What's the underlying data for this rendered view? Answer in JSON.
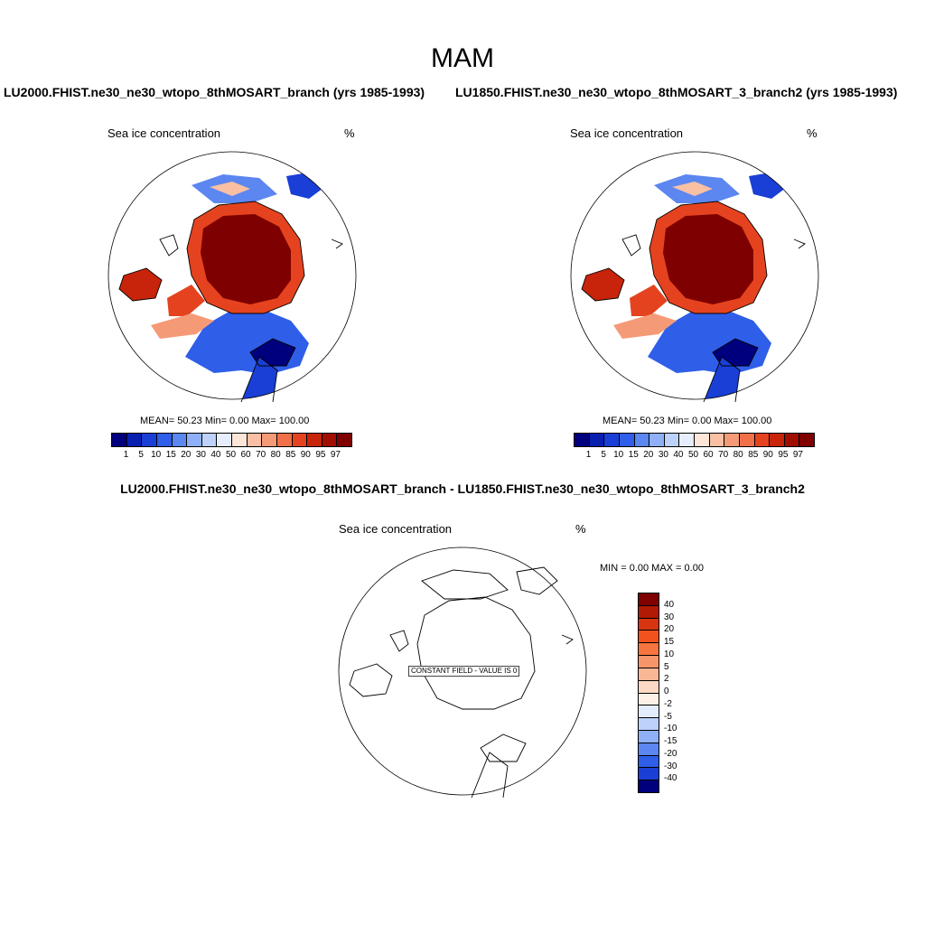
{
  "main_title": "MAM",
  "panels": [
    {
      "case_title": "LU2000.FHIST.ne30_ne30_wtopo_8thMOSART_branch (yrs 1985-1993)",
      "var_label": "Sea ice concentration",
      "units": "%",
      "stats": "MEAN=  50.23  Min=   0.00  Max= 100.00"
    },
    {
      "case_title": "LU1850.FHIST.ne30_ne30_wtopo_8thMOSART_3_branch2 (yrs 1985-1993)",
      "var_label": "Sea ice concentration",
      "units": "%",
      "stats": "MEAN=  50.23  Min=   0.00  Max= 100.00"
    }
  ],
  "diff_panel": {
    "title": "LU2000.FHIST.ne30_ne30_wtopo_8thMOSART_branch - LU1850.FHIST.ne30_ne30_wtopo_8thMOSART_3_branch2",
    "var_label": "Sea ice concentration",
    "units": "%",
    "stats": "MIN =   0.00 MAX =   0.00",
    "constant_field_label": "CONSTANT FIELD - VALUE IS 0"
  },
  "colorbar_horizontal": {
    "labels": [
      "1",
      "5",
      "10",
      "15",
      "20",
      "30",
      "40",
      "50",
      "60",
      "70",
      "80",
      "85",
      "90",
      "95",
      "97"
    ],
    "colors": [
      "#00007f",
      "#0a20b0",
      "#1a3fd6",
      "#2f5ee8",
      "#5c86f0",
      "#8fb0f7",
      "#bcd2fb",
      "#e6eefd",
      "#fde6d8",
      "#f9c0a4",
      "#f59a76",
      "#f1704a",
      "#e5431f",
      "#c8240b",
      "#a20d02",
      "#7f0000"
    ]
  },
  "colorbar_vertical": {
    "labels": [
      "40",
      "30",
      "20",
      "15",
      "10",
      "5",
      "2",
      "0",
      "-2",
      "-5",
      "-10",
      "-15",
      "-20",
      "-30",
      "-40"
    ],
    "colors": [
      "#7f0000",
      "#b11a04",
      "#d6350f",
      "#f2521e",
      "#f5743f",
      "#f7956a",
      "#f9b796",
      "#fbd9c4",
      "#fdf0e6",
      "#e3ecfd",
      "#bcd2fb",
      "#8fb0f7",
      "#5c86f0",
      "#2f5ee8",
      "#1a3fd6",
      "#00007f"
    ]
  }
}
